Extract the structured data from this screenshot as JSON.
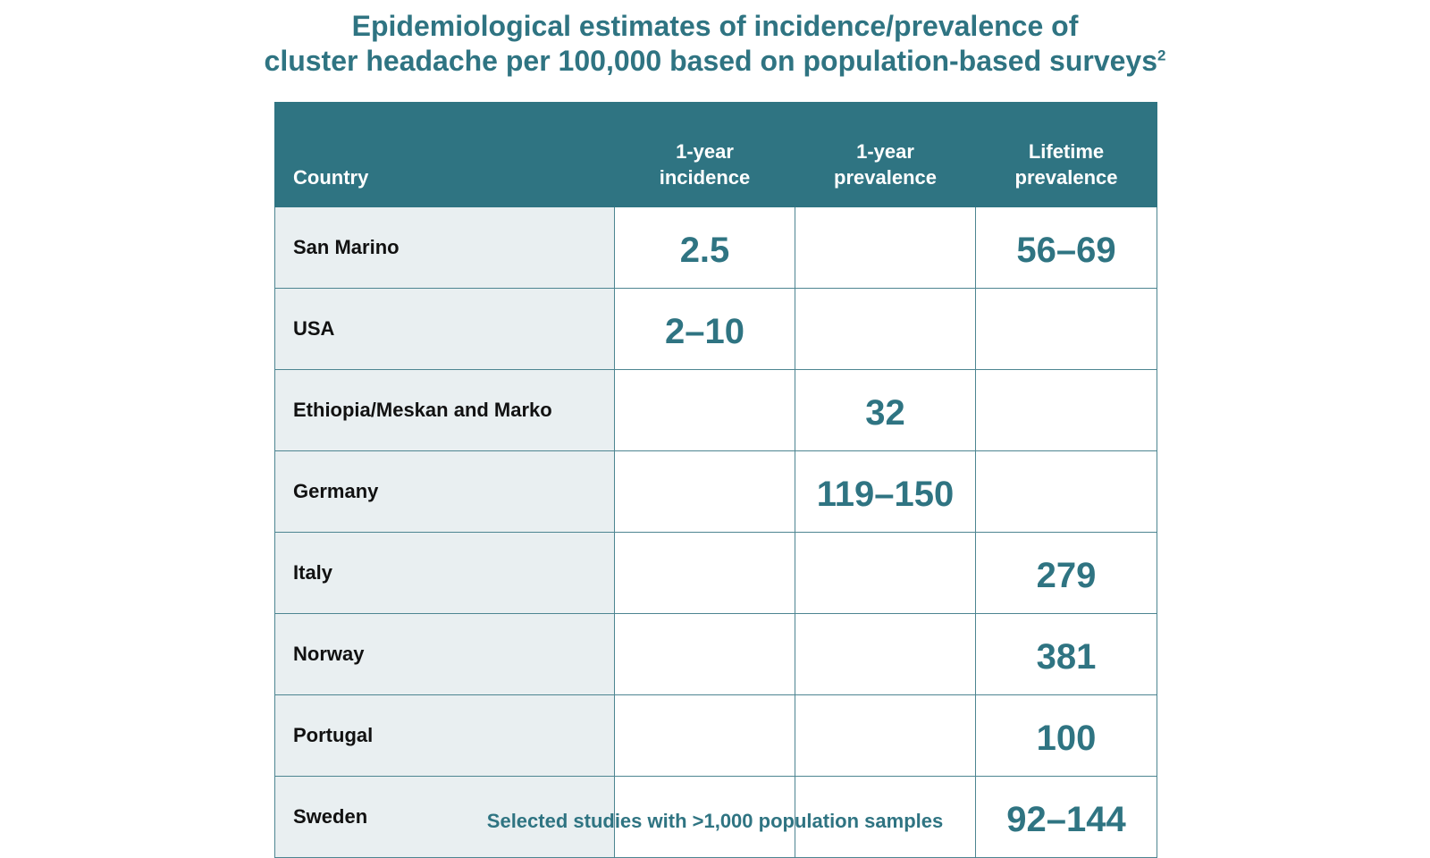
{
  "title": {
    "line1": "Epidemiological estimates of incidence/prevalence of",
    "line2": "cluster headache per 100,000 based on population-based surveys",
    "superscript": "2"
  },
  "table": {
    "headers": {
      "country": "Country",
      "incidence_1yr": [
        "1-year",
        "incidence"
      ],
      "prevalence_1yr": [
        "1-year",
        "prevalence"
      ],
      "prevalence_lifetime": [
        "Lifetime",
        "prevalence"
      ]
    },
    "rows": [
      {
        "country": "San Marino",
        "incidence_1yr": "2.5",
        "prevalence_1yr": "",
        "prevalence_lifetime": "56–69"
      },
      {
        "country": "USA",
        "incidence_1yr": "2–10",
        "prevalence_1yr": "",
        "prevalence_lifetime": ""
      },
      {
        "country": "Ethiopia/Meskan and Marko",
        "incidence_1yr": "",
        "prevalence_1yr": "32",
        "prevalence_lifetime": ""
      },
      {
        "country": "Germany",
        "incidence_1yr": "",
        "prevalence_1yr": "119–150",
        "prevalence_lifetime": ""
      },
      {
        "country": "Italy",
        "incidence_1yr": "",
        "prevalence_1yr": "",
        "prevalence_lifetime": "279"
      },
      {
        "country": "Norway",
        "incidence_1yr": "",
        "prevalence_1yr": "",
        "prevalence_lifetime": "381"
      },
      {
        "country": "Portugal",
        "incidence_1yr": "",
        "prevalence_1yr": "",
        "prevalence_lifetime": "100"
      },
      {
        "country": "Sweden",
        "incidence_1yr": "",
        "prevalence_1yr": "",
        "prevalence_lifetime": "92–144"
      }
    ]
  },
  "footnote": "Selected studies with >1,000 population samples",
  "colors": {
    "accent": "#2f7482",
    "country_cell_bg": "#e9eff1",
    "border": "#4d8591"
  }
}
